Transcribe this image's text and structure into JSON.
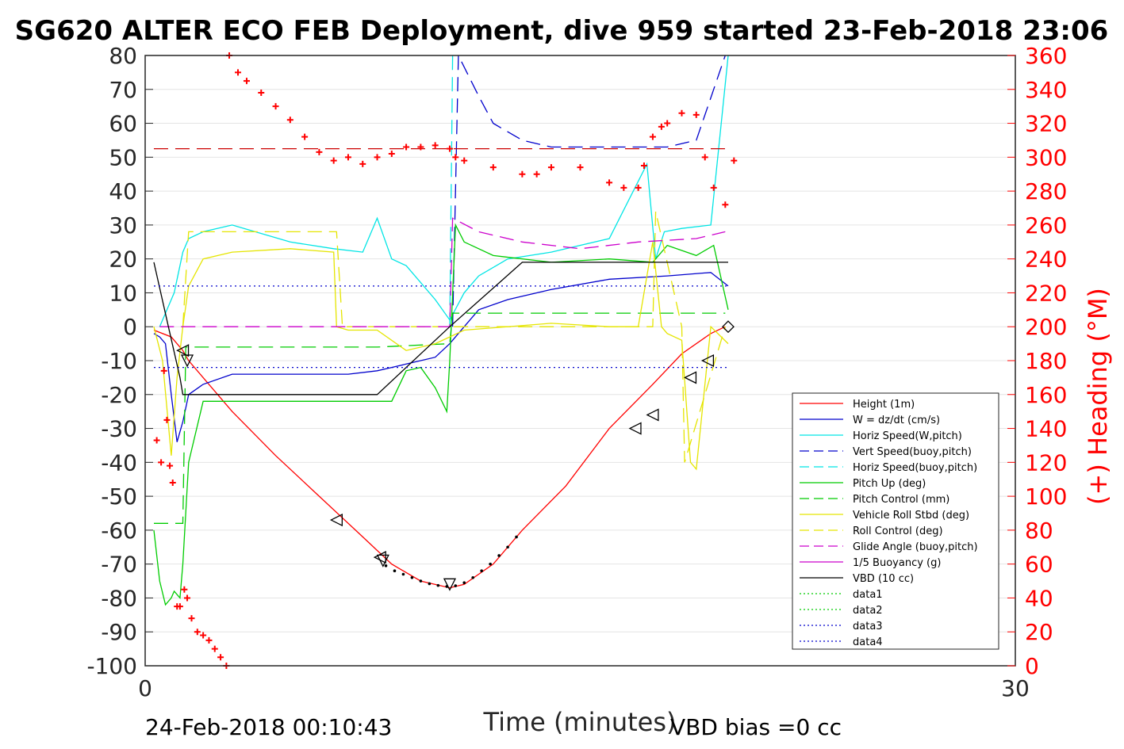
{
  "chart_data": {
    "type": "line",
    "title": "SG620 ALTER ECO FEB Deployment, dive 959 started 23-Feb-2018 23:06",
    "xlabel": "Time (minutes)",
    "ylabel": "",
    "y2label": "(+) Heading (°M)",
    "xlim": [
      0,
      30
    ],
    "ylim": [
      -100,
      80
    ],
    "y2lim": [
      0,
      360
    ],
    "x_ticks": [
      0,
      30
    ],
    "y_ticks": [
      80,
      70,
      60,
      50,
      40,
      30,
      20,
      10,
      0,
      -10,
      -20,
      -30,
      -40,
      -50,
      -60,
      -70,
      -80,
      -90,
      -100
    ],
    "y2_ticks": [
      360,
      340,
      320,
      300,
      280,
      260,
      240,
      220,
      200,
      180,
      160,
      140,
      120,
      100,
      80,
      60,
      40,
      20,
      0
    ],
    "grid": true,
    "legend_position": "lower-right",
    "footer_left": "24-Feb-2018 00:10:43",
    "footer_right": "VBD bias =0 cc",
    "legend": [
      {
        "name": "Height (1m)",
        "color": "#ff0000",
        "dash": "solid"
      },
      {
        "name": "W = dz/dt (cm/s)",
        "color": "#0000cc",
        "dash": "solid"
      },
      {
        "name": "Horiz Speed(W,pitch)",
        "color": "#00e5e5",
        "dash": "solid"
      },
      {
        "name": "Vert Speed(buoy,pitch)",
        "color": "#0000cc",
        "dash": "dashed"
      },
      {
        "name": "Horiz Speed(buoy,pitch)",
        "color": "#00e5e5",
        "dash": "dashed"
      },
      {
        "name": "Pitch Up (deg)",
        "color": "#00cc00",
        "dash": "solid"
      },
      {
        "name": "Pitch Control (mm)",
        "color": "#00cc00",
        "dash": "dashed"
      },
      {
        "name": "Vehicle Roll Stbd (deg)",
        "color": "#e5e500",
        "dash": "solid"
      },
      {
        "name": "Roll Control (deg)",
        "color": "#e5e500",
        "dash": "dashed"
      },
      {
        "name": "Glide Angle (buoy,pitch)",
        "color": "#cc00cc",
        "dash": "dashed"
      },
      {
        "name": "1/5 Buoyancy (g)",
        "color": "#cc00cc",
        "dash": "solid"
      },
      {
        "name": "VBD (10 cc)",
        "color": "#000000",
        "dash": "solid"
      },
      {
        "name": "data1",
        "color": "#00cc00",
        "dash": "dotted"
      },
      {
        "name": "data2",
        "color": "#00cc00",
        "dash": "dotted"
      },
      {
        "name": "data3",
        "color": "#0000cc",
        "dash": "dotted"
      },
      {
        "name": "data4",
        "color": "#0000cc",
        "dash": "dotted"
      }
    ],
    "series": [
      {
        "name": "Height (1m)",
        "color": "#ff0000",
        "dash": "solid",
        "x": [
          0.3,
          0.9,
          1.3,
          1.5,
          2.0,
          3.0,
          4.5,
          6.0,
          7.5,
          8.5,
          9.5,
          10.5,
          11.0,
          12.0,
          13.0,
          14.5,
          16.0,
          17.5,
          18.5,
          19.5,
          20.0
        ],
        "y": [
          -1,
          -3,
          -7,
          -10,
          -15,
          -25,
          -38,
          -50,
          -62,
          -70,
          -75,
          -77,
          -76,
          -70,
          -60,
          -47,
          -30,
          -17,
          -8,
          -2,
          0
        ]
      },
      {
        "name": "W = dz/dt (cm/s)",
        "color": "#0000cc",
        "dash": "solid",
        "x": [
          0.3,
          0.5,
          0.7,
          0.9,
          1.1,
          1.3,
          1.5,
          2.0,
          3.0,
          5.0,
          7.0,
          8.0,
          8.5,
          9.0,
          10.0,
          10.5,
          11.0,
          11.5,
          12.5,
          14.0,
          16.0,
          18.0,
          19.5,
          20.1
        ],
        "y": [
          -2,
          -3,
          -5,
          -20,
          -34,
          -28,
          -20,
          -17,
          -14,
          -14,
          -14,
          -13,
          -12,
          -11,
          -9,
          -5,
          0,
          5,
          8,
          11,
          14,
          15,
          16,
          12
        ]
      },
      {
        "name": "Horiz Speed(W,pitch)",
        "color": "#00e5e5",
        "dash": "solid",
        "x": [
          0.5,
          1.0,
          1.3,
          1.5,
          2.0,
          3.0,
          5.0,
          6.5,
          7.5,
          8.0,
          8.5,
          9.0,
          10.0,
          10.5,
          11.0,
          11.5,
          12.5,
          14.0,
          16.0,
          17.3,
          17.6,
          17.9,
          18.5,
          19.5,
          20.1
        ],
        "y": [
          0,
          10,
          22,
          26,
          28,
          30,
          25,
          23,
          22,
          32,
          20,
          18,
          8,
          2,
          10,
          15,
          20,
          22,
          26,
          48,
          20,
          28,
          29,
          30,
          80
        ]
      },
      {
        "name": "Vert Speed(buoy,pitch)",
        "color": "#0000cc",
        "dash": "dashed",
        "x": [
          10.6,
          10.8,
          11.5,
          12.0,
          13.0,
          14.0,
          15.0,
          16.0,
          17.0,
          18.0,
          19.0,
          19.6,
          20.0
        ],
        "y": [
          0,
          80,
          68,
          60,
          55,
          53,
          53,
          53,
          53,
          53,
          55,
          70,
          80
        ]
      },
      {
        "name": "Horiz Speed(buoy,pitch)",
        "color": "#00e5e5",
        "dash": "dashed",
        "x": [
          10.5,
          10.6,
          10.8
        ],
        "y": [
          0,
          80,
          80
        ]
      },
      {
        "name": "Pitch Up (deg)",
        "color": "#00cc00",
        "dash": "solid",
        "x": [
          0.3,
          0.5,
          0.7,
          0.9,
          1.0,
          1.2,
          1.3,
          1.5,
          2.0,
          4.0,
          6.0,
          7.5,
          8.5,
          9.0,
          9.5,
          10.0,
          10.4,
          10.5,
          10.7,
          11.0,
          12.0,
          14.0,
          16.0,
          17.5,
          18.0,
          19.0,
          19.6,
          20.1
        ],
        "y": [
          -60,
          -75,
          -82,
          -80,
          -78,
          -80,
          -70,
          -40,
          -22,
          -22,
          -22,
          -22,
          -22,
          -13,
          -12,
          -18,
          -25,
          -10,
          30,
          25,
          21,
          19,
          20,
          19,
          24,
          21,
          24,
          5
        ]
      },
      {
        "name": "Pitch Control (mm)",
        "color": "#00cc00",
        "dash": "dashed",
        "x": [
          0.3,
          1.3,
          1.4,
          8.0,
          10.5,
          10.6,
          20.0
        ],
        "y": [
          -58,
          -58,
          -6,
          -6,
          -5,
          4,
          4
        ]
      },
      {
        "name": "Vehicle Roll Stbd (deg)",
        "color": "#e5e500",
        "dash": "solid",
        "x": [
          0.3,
          0.6,
          0.9,
          1.1,
          1.3,
          1.5,
          2.0,
          3.0,
          5.0,
          6.5,
          6.6,
          7.0,
          8.0,
          9.0,
          10.0,
          10.5,
          11.0,
          14.0,
          16.0,
          17.0,
          17.5,
          17.8,
          18.0,
          18.5,
          18.8,
          19.0,
          19.5,
          20.1
        ],
        "y": [
          0,
          -10,
          -38,
          -15,
          0,
          12,
          20,
          22,
          23,
          22,
          0,
          -1,
          -1,
          -7,
          -5,
          -3,
          -1,
          1,
          0,
          0,
          25,
          0,
          -2,
          -4,
          -40,
          -42,
          0,
          -5
        ]
      },
      {
        "name": "Roll Control (deg)",
        "color": "#e5e500",
        "dash": "dashed",
        "x": [
          1.3,
          1.5,
          6.6,
          6.8,
          10.5,
          17.5,
          17.6,
          18.5,
          18.6,
          20.0
        ],
        "y": [
          0,
          28,
          28,
          0,
          0,
          0,
          34,
          0,
          -40,
          0
        ]
      },
      {
        "name": "Glide Angle (buoy,pitch)",
        "color": "#cc00cc",
        "dash": "dashed",
        "x": [
          0.5,
          10.5,
          10.6,
          11.5,
          13.0,
          15.0,
          17.0,
          19.0,
          20.0
        ],
        "y": [
          0,
          0,
          32,
          28,
          25,
          23,
          25,
          26,
          28
        ]
      },
      {
        "name": "1/5 Buoyancy (g)",
        "color": "#cc00cc",
        "dash": "solid",
        "x": [],
        "y": []
      },
      {
        "name": "VBD (10 cc)",
        "color": "#000000",
        "dash": "solid",
        "x": [
          0.3,
          0.8,
          1.2,
          1.3,
          8.0,
          10.5,
          13.0,
          20.1
        ],
        "y": [
          19,
          0,
          -15,
          -20,
          -20,
          0,
          19,
          19
        ]
      },
      {
        "name": "data1",
        "color": "#00cc00",
        "dash": "dotted",
        "x": [],
        "y": []
      },
      {
        "name": "data2",
        "color": "#00cc00",
        "dash": "dotted",
        "x": [],
        "y": []
      },
      {
        "name": "data3",
        "color": "#0000cc",
        "dash": "dotted",
        "x": [
          0.3,
          20.1
        ],
        "y": [
          12,
          12
        ]
      },
      {
        "name": "data4",
        "color": "#0000cc",
        "dash": "dotted",
        "x": [
          0.3,
          20.1
        ],
        "y": [
          -12,
          -12
        ]
      }
    ],
    "heading_reference": {
      "color": "#cc0000",
      "dash": "dashed",
      "x": [
        0.3,
        20.1
      ],
      "y2": [
        305,
        305
      ]
    },
    "heading": {
      "color": "#ff0000",
      "marker": "+",
      "x": [
        2.9,
        3.2,
        3.5,
        4.0,
        4.5,
        5.0,
        5.5,
        6.0,
        6.5,
        7.0,
        7.5,
        8.0,
        8.5,
        9.0,
        9.5,
        10.0,
        10.5,
        10.7,
        11.0,
        12.0,
        13.0,
        13.5,
        14.0,
        15.0,
        16.0,
        16.5,
        17.0,
        17.2,
        17.5,
        17.8,
        18.0,
        18.5,
        19.0,
        19.3,
        19.6,
        20.0,
        20.3,
        0.4,
        0.55,
        0.65,
        0.75,
        0.85,
        0.95,
        1.1,
        1.2,
        1.35,
        1.45,
        1.6,
        1.8,
        2.0,
        2.2,
        2.4,
        2.6,
        2.8
      ],
      "y": [
        360,
        350,
        345,
        338,
        330,
        322,
        312,
        303,
        298,
        300,
        296,
        300,
        302,
        306,
        306,
        307,
        305,
        300,
        298,
        294,
        290,
        290,
        294,
        294,
        285,
        282,
        282,
        295,
        312,
        318,
        320,
        326,
        325,
        300,
        282,
        272,
        298,
        133,
        120,
        174,
        145,
        118,
        108,
        35,
        35,
        45,
        40,
        28,
        20,
        18,
        15,
        10,
        5,
        0
      ]
    },
    "depth_markers": [
      {
        "shape": "triangle-left",
        "x": 1.3,
        "y": -7
      },
      {
        "shape": "triangle-down",
        "x": 1.45,
        "y": -10
      },
      {
        "shape": "triangle-left",
        "x": 6.6,
        "y": -57
      },
      {
        "shape": "triangle-left",
        "x": 8.1,
        "y": -68
      },
      {
        "shape": "triangle-down",
        "x": 8.2,
        "y": -69
      },
      {
        "shape": "triangle-down",
        "x": 10.5,
        "y": -76
      },
      {
        "shape": "triangle-left",
        "x": 16.9,
        "y": -30
      },
      {
        "shape": "triangle-left",
        "x": 17.5,
        "y": -26
      },
      {
        "shape": "triangle-left",
        "x": 18.8,
        "y": -15
      },
      {
        "shape": "triangle-left",
        "x": 19.4,
        "y": -10
      },
      {
        "shape": "diamond",
        "x": 20.1,
        "y": 0
      }
    ],
    "height_dots": {
      "color": "#000000",
      "x": [
        8.3,
        8.6,
        8.9,
        9.2,
        9.5,
        9.8,
        10.1,
        10.4,
        10.7,
        11.0,
        11.3,
        11.6,
        11.9,
        12.2,
        12.5,
        12.8
      ],
      "y": [
        -70.5,
        -72,
        -73,
        -74,
        -75,
        -75.8,
        -76.3,
        -76.6,
        -76.4,
        -75.5,
        -74,
        -72,
        -70,
        -67.5,
        -65,
        -62
      ]
    }
  }
}
